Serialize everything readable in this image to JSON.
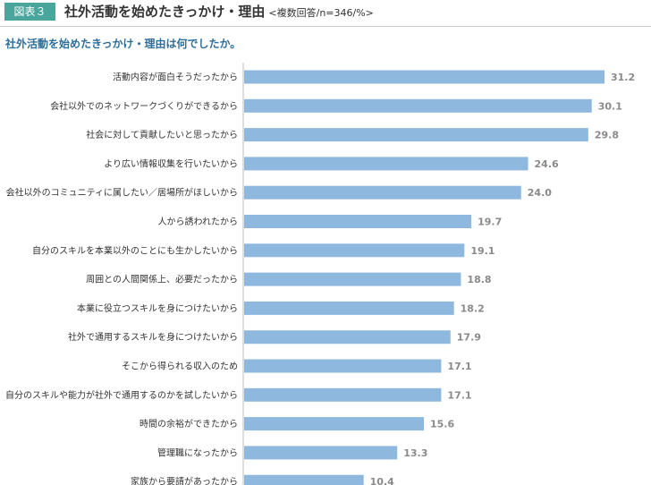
{
  "header": {
    "figure_label": "図表３",
    "title": "社外活動を始めたきっかけ・理由",
    "note": "<複数回答/n=346/%>"
  },
  "subtitle": "社外活動を始めたきっかけ・理由は何でしたか。",
  "colors": {
    "bar": "#8fb8de",
    "badge": "#4aa59c",
    "subtitle": "#2e6e9a",
    "value_label": "#8a8a8a"
  },
  "chart_data": {
    "type": "bar",
    "orientation": "horizontal",
    "categories": [
      "活動内容が面白そうだったから",
      "会社以外でのネットワークづくりができるから",
      "社会に対して貢献したいと思ったから",
      "より広い情報収集を行いたいから",
      "会社以外のコミュニティに属したい／居場所がほしいから",
      "人から誘われたから",
      "自分のスキルを本業以外のことにも生かしたいから",
      "周囲との人間関係上、必要だったから",
      "本業に役立つスキルを身につけたいから",
      "社外で通用するスキルを身につけたいから",
      "そこから得られる収入のため",
      "自分のスキルや能力が社外で通用するのかを試したいから",
      "時間の余裕ができたから",
      "管理職になったから",
      "家族から要請があったから"
    ],
    "values": [
      31.2,
      30.1,
      29.8,
      24.6,
      24.0,
      19.7,
      19.1,
      18.8,
      18.2,
      17.9,
      17.1,
      17.1,
      15.6,
      13.3,
      10.4
    ],
    "value_labels": [
      "31.2",
      "30.1",
      "29.8",
      "24.6",
      "24.0",
      "19.7",
      "19.1",
      "18.8",
      "18.2",
      "17.9",
      "17.1",
      "17.1",
      "15.6",
      "13.3",
      "10.4"
    ],
    "title": "",
    "xlabel": "",
    "ylabel": "",
    "xlim": [
      0,
      33
    ]
  }
}
